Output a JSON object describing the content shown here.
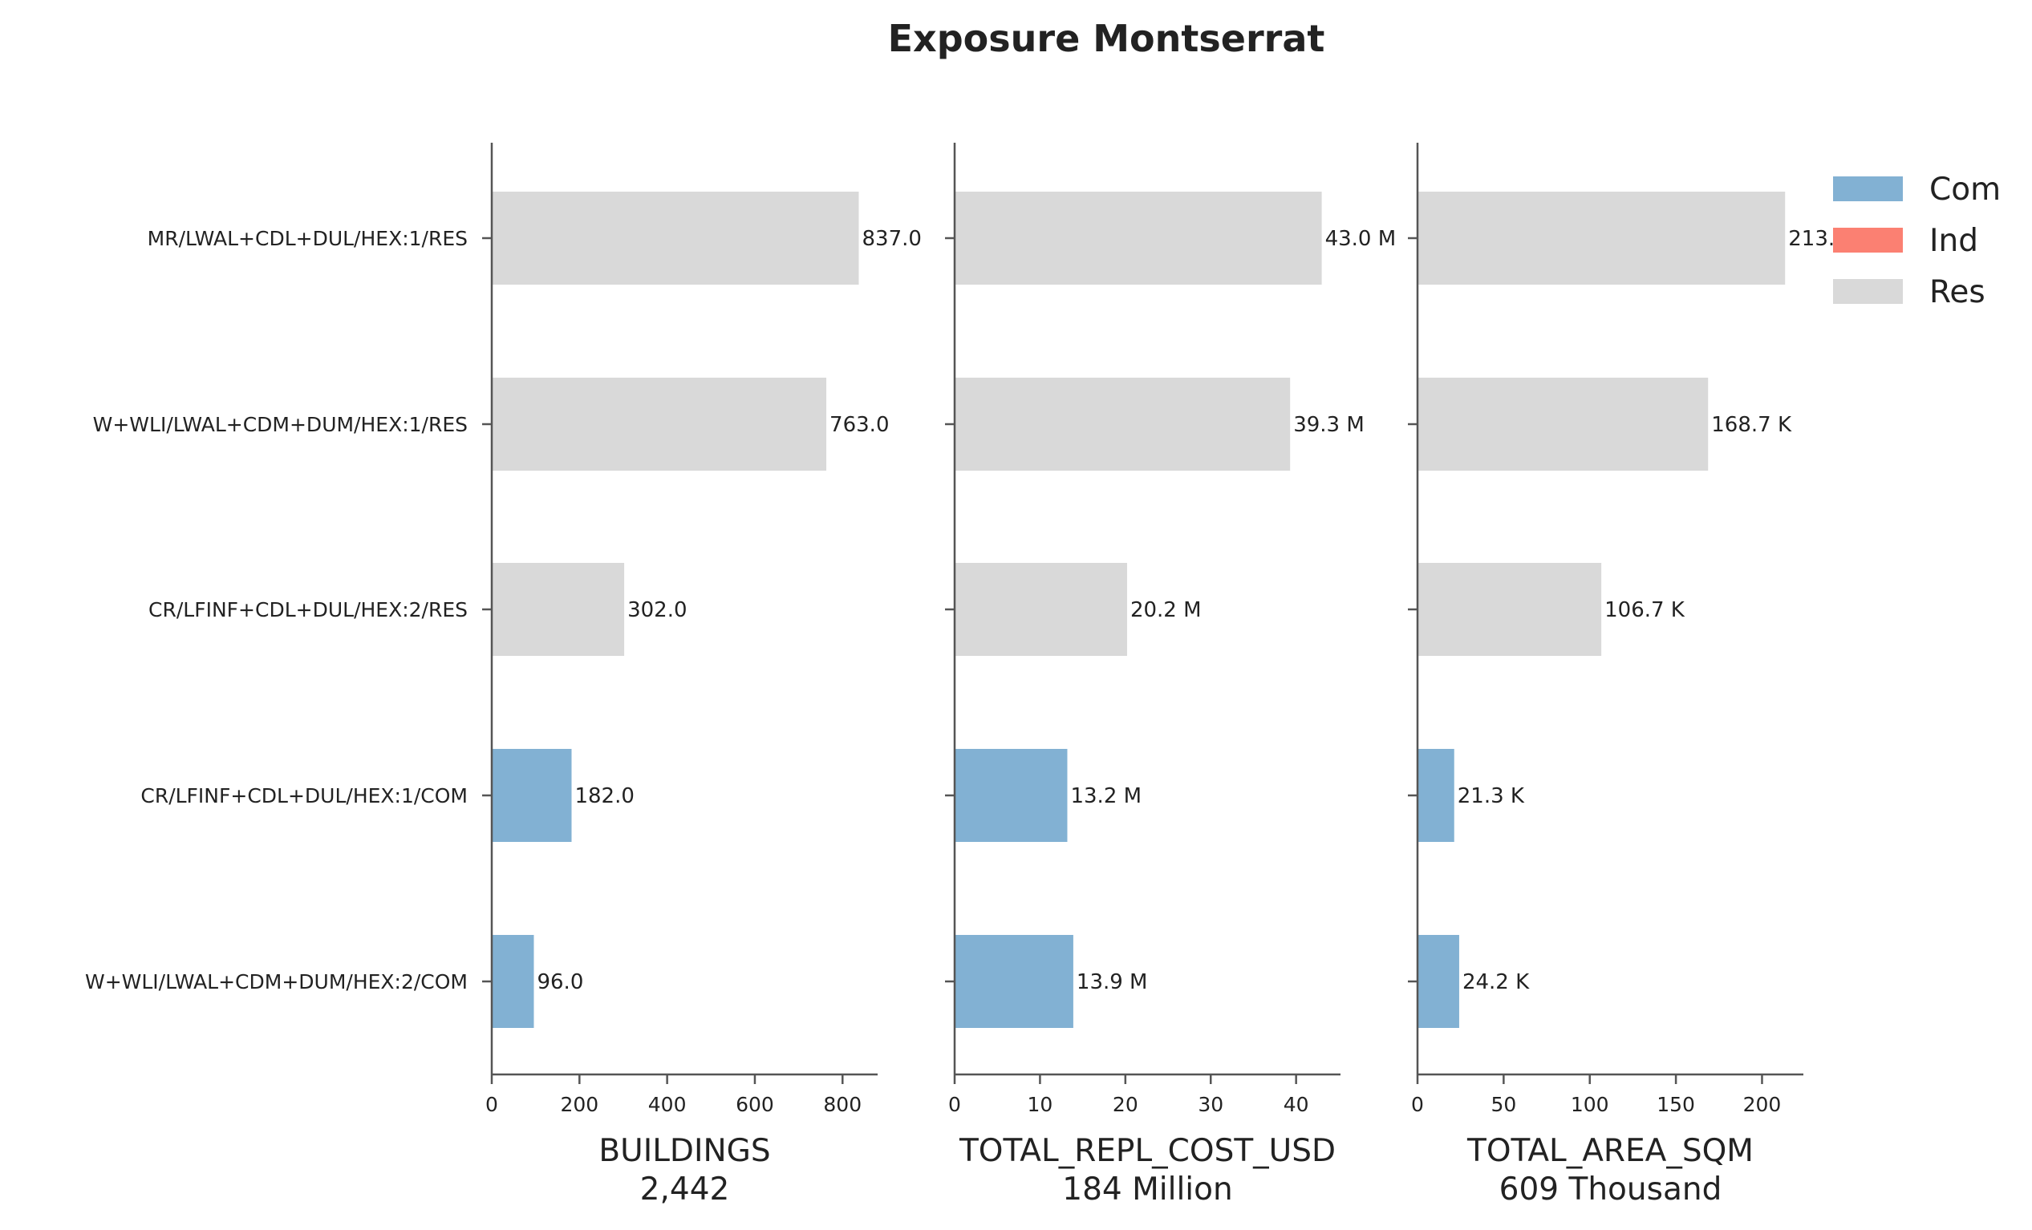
{
  "title": "Exposure Montserrat",
  "colors": {
    "Com": "#82b1d3",
    "Ind": "#fb8072",
    "Res": "#d9d9d9",
    "axis": "#555555",
    "text": "#222222"
  },
  "legend": {
    "placement": "top-right",
    "entries": [
      {
        "label": "Com",
        "color_key": "Com"
      },
      {
        "label": "Ind",
        "color_key": "Ind"
      },
      {
        "label": "Res",
        "color_key": "Res"
      }
    ]
  },
  "chart_data": [
    {
      "type": "bar",
      "orientation": "horizontal",
      "categories": [
        "MR/LWAL+CDL+DUL/HEX:1/RES",
        "W+WLI/LWAL+CDM+DUM/HEX:1/RES",
        "CR/LFINF+CDL+DUL/HEX:2/RES",
        "CR/LFINF+CDL+DUL/HEX:1/COM",
        "W+WLI/LWAL+CDM+DUM/HEX:2/COM"
      ],
      "occupancy": [
        "Res",
        "Res",
        "Res",
        "Com",
        "Com"
      ],
      "values": [
        837,
        763,
        302,
        182,
        96
      ],
      "data_labels": [
        "837.0",
        "763.0",
        "302.0",
        "182.0",
        "96.0"
      ],
      "xlabel": "BUILDINGS",
      "total_label": "2,442",
      "xlim": [
        0,
        880
      ],
      "xticks": [
        0,
        200,
        400,
        600,
        800
      ],
      "xtick_labels": [
        "0",
        "200",
        "400",
        "600",
        "800"
      ]
    },
    {
      "type": "bar",
      "orientation": "horizontal",
      "categories": [
        "MR/LWAL+CDL+DUL/HEX:1/RES",
        "W+WLI/LWAL+CDM+DUM/HEX:1/RES",
        "CR/LFINF+CDL+DUL/HEX:2/RES",
        "CR/LFINF+CDL+DUL/HEX:1/COM",
        "W+WLI/LWAL+CDM+DUM/HEX:2/COM"
      ],
      "occupancy": [
        "Res",
        "Res",
        "Res",
        "Com",
        "Com"
      ],
      "values": [
        43.0,
        39.3,
        20.2,
        13.2,
        13.9
      ],
      "value_unit": "Million",
      "data_labels": [
        "43.0 M",
        "39.3 M",
        "20.2 M",
        "13.2 M",
        "13.9 M"
      ],
      "xlabel": "TOTAL_REPL_COST_USD",
      "total_label": "184 Million",
      "xlim": [
        0,
        45.2
      ],
      "xticks": [
        0,
        10,
        20,
        30,
        40
      ],
      "xtick_labels": [
        "0",
        "10",
        "20",
        "30",
        "40"
      ]
    },
    {
      "type": "bar",
      "orientation": "horizontal",
      "categories": [
        "MR/LWAL+CDL+DUL/HEX:1/RES",
        "W+WLI/LWAL+CDM+DUM/HEX:1/RES",
        "CR/LFINF+CDL+DUL/HEX:2/RES",
        "CR/LFINF+CDL+DUL/HEX:1/COM",
        "W+WLI/LWAL+CDM+DUM/HEX:2/COM"
      ],
      "occupancy": [
        "Res",
        "Res",
        "Res",
        "Com",
        "Com"
      ],
      "values": [
        213.4,
        168.7,
        106.7,
        21.3,
        24.2
      ],
      "value_unit": "Thousand",
      "data_labels": [
        "213.4 K",
        "168.7 K",
        "106.7 K",
        "21.3 K",
        "24.2 K"
      ],
      "xlabel": "TOTAL_AREA_SQM",
      "total_label": "609 Thousand",
      "xlim": [
        0,
        224
      ],
      "xticks": [
        0,
        50,
        100,
        150,
        200
      ],
      "xtick_labels": [
        "0",
        "50",
        "100",
        "150",
        "200"
      ]
    }
  ]
}
